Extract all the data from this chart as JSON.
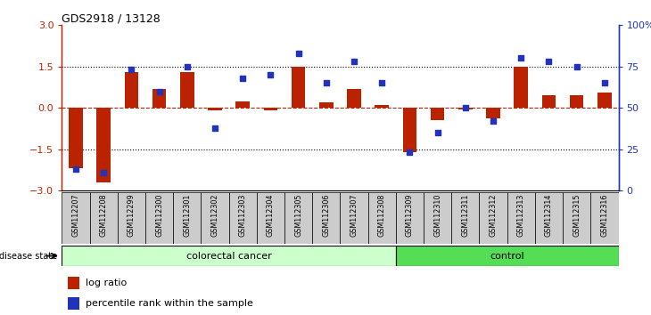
{
  "title": "GDS2918 / 13128",
  "samples": [
    "GSM112207",
    "GSM112208",
    "GSM112299",
    "GSM112300",
    "GSM112301",
    "GSM112302",
    "GSM112303",
    "GSM112304",
    "GSM112305",
    "GSM112306",
    "GSM112307",
    "GSM112308",
    "GSM112309",
    "GSM112310",
    "GSM112311",
    "GSM112312",
    "GSM112313",
    "GSM112314",
    "GSM112315",
    "GSM112316"
  ],
  "log_ratio": [
    -2.2,
    -2.7,
    1.3,
    0.7,
    1.3,
    -0.08,
    0.25,
    -0.08,
    1.5,
    0.2,
    0.7,
    0.1,
    -1.62,
    -0.45,
    -0.05,
    -0.38,
    1.5,
    0.45,
    0.45,
    0.55
  ],
  "percentile": [
    13,
    11,
    73,
    60,
    75,
    38,
    68,
    70,
    83,
    65,
    78,
    65,
    23,
    35,
    50,
    42,
    80,
    78,
    75,
    65
  ],
  "colorectal_count": 12,
  "bar_color": "#BB2200",
  "dot_color": "#2233BB",
  "colorectal_color": "#CCFFCC",
  "control_color": "#55DD55",
  "xtick_box_color": "#CCCCCC",
  "ylim_left": [
    -3,
    3
  ],
  "yticks_left": [
    -3,
    -1.5,
    0,
    1.5,
    3
  ],
  "yticks_right": [
    0,
    25,
    50,
    75,
    100
  ],
  "legend_bar_label": "log ratio",
  "legend_dot_label": "percentile rank within the sample"
}
